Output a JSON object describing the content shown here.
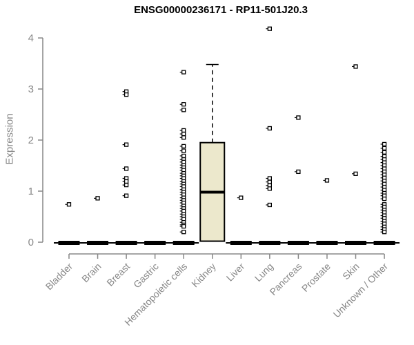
{
  "chart_data": {
    "type": "boxplot",
    "title": "ENSG00000236171 - RP11-501J20.3",
    "ylabel": "Expression",
    "xlabel": "",
    "ylim": [
      0,
      4
    ],
    "yticks": [
      0,
      1,
      2,
      3,
      4
    ],
    "grid": "off",
    "legend": "none",
    "axis_color": "#878787",
    "box_fill_color": "#ECE8CC",
    "box_line_color": "#000000",
    "categories": [
      "Bladder",
      "Brain",
      "Breast",
      "Gastric",
      "Hematopoietic cells",
      "Kidney",
      "Liver",
      "Lung",
      "Pancreas",
      "Prostate",
      "Skin",
      "Unknown / Other"
    ],
    "series": [
      {
        "category": "Bladder",
        "box": {
          "low": 0,
          "q1": 0,
          "median": 0,
          "q3": 0,
          "high": 0
        },
        "outliers": [
          0.74
        ]
      },
      {
        "category": "Brain",
        "box": {
          "low": 0,
          "q1": 0,
          "median": 0,
          "q3": 0,
          "high": 0
        },
        "outliers": [
          0.86
        ]
      },
      {
        "category": "Breast",
        "box": {
          "low": 0,
          "q1": 0,
          "median": 0,
          "q3": 0,
          "high": 0
        },
        "outliers": [
          2.95,
          2.89,
          1.91,
          1.44,
          1.25,
          1.19,
          1.12,
          0.91
        ]
      },
      {
        "category": "Gastric",
        "box": {
          "low": 0,
          "q1": 0,
          "median": 0,
          "q3": 0,
          "high": 0
        },
        "outliers": []
      },
      {
        "category": "Hematopoietic cells",
        "box": {
          "low": 0,
          "q1": 0,
          "median": 0,
          "q3": 0,
          "high": 0
        },
        "outliers": [
          3.33,
          2.7,
          2.59,
          2.19,
          2.12,
          2.05,
          1.88,
          1.79,
          1.69,
          1.62,
          1.57,
          1.51,
          1.46,
          1.41,
          1.35,
          1.3,
          1.25,
          1.19,
          1.14,
          1.09,
          1.03,
          0.98,
          0.93,
          0.87,
          0.82,
          0.77,
          0.71,
          0.66,
          0.61,
          0.55,
          0.5,
          0.45,
          0.39,
          0.34,
          0.31,
          0.2
        ]
      },
      {
        "category": "Kidney",
        "box": {
          "low": 0.02,
          "q1": 0.02,
          "median": 0.98,
          "q3": 1.95,
          "high": 3.48
        },
        "outliers": []
      },
      {
        "category": "Liver",
        "box": {
          "low": 0,
          "q1": 0,
          "median": 0,
          "q3": 0,
          "high": 0
        },
        "outliers": [
          0.87
        ]
      },
      {
        "category": "Lung",
        "box": {
          "low": 0,
          "q1": 0,
          "median": 0,
          "q3": 0,
          "high": 0
        },
        "outliers": [
          4.18,
          2.23,
          1.25,
          1.18,
          1.11,
          1.05,
          0.73
        ]
      },
      {
        "category": "Pancreas",
        "box": {
          "low": 0,
          "q1": 0,
          "median": 0,
          "q3": 0,
          "high": 0
        },
        "outliers": [
          2.44,
          1.38
        ]
      },
      {
        "category": "Prostate",
        "box": {
          "low": 0,
          "q1": 0,
          "median": 0,
          "q3": 0,
          "high": 0
        },
        "outliers": [
          1.21
        ]
      },
      {
        "category": "Skin",
        "box": {
          "low": 0,
          "q1": 0,
          "median": 0,
          "q3": 0,
          "high": 0
        },
        "outliers": [
          3.44,
          1.34
        ]
      },
      {
        "category": "Unknown / Other",
        "box": {
          "low": 0,
          "q1": 0,
          "median": 0,
          "q3": 0,
          "high": 0
        },
        "outliers": [
          1.92,
          1.84,
          1.76,
          1.68,
          1.62,
          1.56,
          1.5,
          1.44,
          1.38,
          1.32,
          1.26,
          1.2,
          1.14,
          1.08,
          1.02,
          0.96,
          0.91,
          0.85,
          0.74,
          0.69,
          0.63,
          0.58,
          0.52,
          0.47,
          0.41,
          0.36,
          0.3,
          0.25,
          0.2
        ]
      }
    ]
  }
}
